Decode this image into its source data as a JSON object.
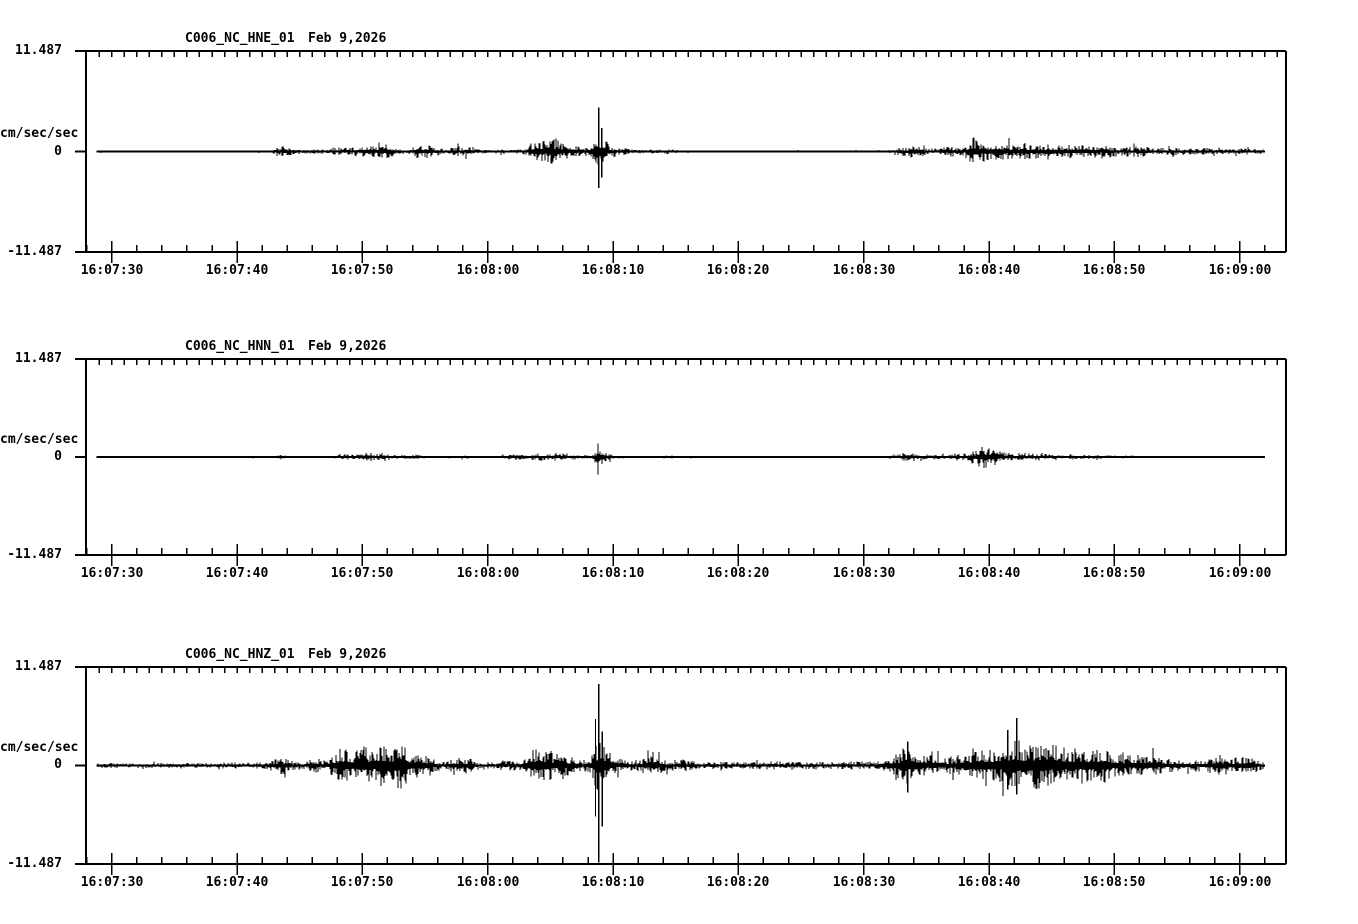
{
  "window": {
    "background": "#ffffff",
    "ink": "#000000"
  },
  "panels": [
    {
      "station": "C006_NC_HNE_01",
      "date": "Feb 9,2026",
      "units_label": "cm/sec/sec",
      "y_max_label": "11.487",
      "y_zero_label": "0",
      "y_min_label": "-11.487"
    },
    {
      "station": "C006_NC_HNN_01",
      "date": "Feb 9,2026",
      "units_label": "cm/sec/sec",
      "y_max_label": "11.487",
      "y_zero_label": "0",
      "y_min_label": "-11.487"
    },
    {
      "station": "C006_NC_HNZ_01",
      "date": "Feb 9,2026",
      "units_label": "cm/sec/sec",
      "y_max_label": "11.487",
      "y_zero_label": "0",
      "y_min_label": "-11.487"
    }
  ],
  "time_axis": {
    "labels": [
      "16:07:30",
      "16:07:40",
      "16:07:50",
      "16:08:00",
      "16:08:10",
      "16:08:20",
      "16:08:30",
      "16:08:40",
      "16:08:50",
      "16:09:00"
    ],
    "label_seconds": [
      30,
      40,
      50,
      60,
      70,
      80,
      90,
      100,
      110,
      120
    ],
    "minor_tick_step_seconds": 2,
    "top_tick_step_seconds": 1
  },
  "chart_data": {
    "type": "line",
    "subtype": "seismogram-3-component",
    "station": "C006 NC",
    "date": "Feb 9,2026",
    "ylabel": "cm/sec/sec",
    "ylim": [
      -11.487,
      11.487
    ],
    "ytick_labels": [
      "11.487",
      "0",
      "-11.487"
    ],
    "x_start_seconds": 28.8,
    "x_end_seconds": 122.0,
    "x_tick_labels": [
      "16:07:30",
      "16:07:40",
      "16:07:50",
      "16:08:00",
      "16:08:10",
      "16:08:20",
      "16:08:30",
      "16:08:40",
      "16:08:50",
      "16:09:00"
    ],
    "note": "t = seconds after 16:07:00; envelope = [t, peak amplitude cm/sec/sec]; spikes = [t, up_amp, down_amp]",
    "series": [
      {
        "name": "C006_NC_HNE_01",
        "channel": "HNE",
        "envelope": [
          [
            28.8,
            0.12
          ],
          [
            40,
            0.12
          ],
          [
            42.8,
            0.15
          ],
          [
            43.3,
            0.65
          ],
          [
            44.2,
            0.45
          ],
          [
            44.9,
            0.2
          ],
          [
            45.8,
            0.25
          ],
          [
            47.3,
            0.3
          ],
          [
            47.9,
            0.55
          ],
          [
            48.7,
            0.45
          ],
          [
            49.4,
            0.5
          ],
          [
            50.2,
            0.8
          ],
          [
            51,
            0.7
          ],
          [
            51.9,
            0.85
          ],
          [
            52.7,
            0.35
          ],
          [
            53.6,
            0.3
          ],
          [
            54.4,
            0.85
          ],
          [
            55.1,
            0.9
          ],
          [
            55.7,
            0.4
          ],
          [
            56.8,
            0.3
          ],
          [
            57.8,
            0.65
          ],
          [
            58.4,
            0.75
          ],
          [
            59.1,
            0.4
          ],
          [
            60.2,
            0.18
          ],
          [
            61.4,
            0.3
          ],
          [
            62.3,
            0.2
          ],
          [
            63.1,
            0.45
          ],
          [
            63.9,
            1.5
          ],
          [
            64.6,
            1.2
          ],
          [
            65.4,
            1.6
          ],
          [
            66.1,
            0.8
          ],
          [
            66.7,
            0.9
          ],
          [
            67.4,
            0.5
          ],
          [
            68.2,
            0.6
          ],
          [
            68.7,
            2.2
          ],
          [
            69.2,
            1.9
          ],
          [
            69.8,
            0.7
          ],
          [
            70.7,
            0.55
          ],
          [
            71.3,
            0.3
          ],
          [
            72.5,
            0.2
          ],
          [
            74.5,
            0.3
          ],
          [
            75.3,
            0.15
          ],
          [
            77,
            0.1
          ],
          [
            90,
            0.1
          ],
          [
            92.2,
            0.18
          ],
          [
            93,
            0.55
          ],
          [
            93.8,
            0.75
          ],
          [
            94.8,
            0.5
          ],
          [
            95.8,
            0.3
          ],
          [
            96.5,
            0.55
          ],
          [
            97.2,
            0.6
          ],
          [
            98,
            0.5
          ],
          [
            98.7,
            1.7
          ],
          [
            99.4,
            1.2
          ],
          [
            100.2,
            0.95
          ],
          [
            101,
            1.15
          ],
          [
            101.8,
            0.85
          ],
          [
            102.8,
            1.0
          ],
          [
            103.8,
            0.8
          ],
          [
            104.8,
            0.95
          ],
          [
            105.8,
            0.75
          ],
          [
            107,
            0.85
          ],
          [
            108.2,
            0.65
          ],
          [
            109.4,
            0.75
          ],
          [
            110.6,
            0.55
          ],
          [
            112,
            0.65
          ],
          [
            113.2,
            0.4
          ],
          [
            114.6,
            0.5
          ],
          [
            116,
            0.35
          ],
          [
            117.4,
            0.45
          ],
          [
            118.8,
            0.3
          ],
          [
            120.2,
            0.38
          ],
          [
            121.2,
            0.28
          ],
          [
            122,
            0.25
          ]
        ],
        "spikes": [
          [
            68.85,
            5.1,
            4.2
          ],
          [
            69.1,
            2.7,
            3.0
          ]
        ]
      },
      {
        "name": "C006_NC_HNN_01",
        "channel": "HNN",
        "envelope": [
          [
            28.8,
            0.08
          ],
          [
            42.8,
            0.1
          ],
          [
            43.4,
            0.3
          ],
          [
            44.2,
            0.12
          ],
          [
            47.6,
            0.14
          ],
          [
            48.3,
            0.4
          ],
          [
            49.3,
            0.35
          ],
          [
            50.5,
            0.5
          ],
          [
            51.6,
            0.55
          ],
          [
            52.4,
            0.25
          ],
          [
            54.3,
            0.28
          ],
          [
            55.1,
            0.15
          ],
          [
            56.5,
            0.08
          ],
          [
            57.9,
            0.2
          ],
          [
            58.6,
            0.25
          ],
          [
            59.3,
            0.12
          ],
          [
            60.8,
            0.1
          ],
          [
            61.5,
            0.4
          ],
          [
            62.4,
            0.45
          ],
          [
            63.2,
            0.2
          ],
          [
            64.1,
            0.45
          ],
          [
            64.9,
            0.35
          ],
          [
            65.6,
            0.5
          ],
          [
            66.5,
            0.45
          ],
          [
            67.2,
            0.2
          ],
          [
            68.4,
            0.3
          ],
          [
            68.8,
            1.1
          ],
          [
            69.3,
            0.8
          ],
          [
            69.9,
            0.25
          ],
          [
            71,
            0.15
          ],
          [
            72.8,
            0.1
          ],
          [
            74.6,
            0.22
          ],
          [
            75.4,
            0.12
          ],
          [
            78,
            0.12
          ],
          [
            80,
            0.07
          ],
          [
            91.5,
            0.07
          ],
          [
            92.4,
            0.2
          ],
          [
            93.2,
            0.5
          ],
          [
            94,
            0.55
          ],
          [
            94.9,
            0.3
          ],
          [
            95.8,
            0.35
          ],
          [
            96.6,
            0.3
          ],
          [
            97.4,
            0.45
          ],
          [
            98.2,
            0.4
          ],
          [
            98.9,
            1.0
          ],
          [
            99.5,
            1.35
          ],
          [
            100.3,
            1.1
          ],
          [
            101.1,
            0.6
          ],
          [
            102,
            0.5
          ],
          [
            103,
            0.45
          ],
          [
            104.2,
            0.4
          ],
          [
            105.4,
            0.35
          ],
          [
            106.6,
            0.3
          ],
          [
            108,
            0.25
          ],
          [
            109.5,
            0.2
          ],
          [
            111,
            0.18
          ],
          [
            113,
            0.12
          ],
          [
            115,
            0.1
          ],
          [
            118,
            0.13
          ],
          [
            120,
            0.08
          ],
          [
            122,
            0.08
          ]
        ],
        "spikes": [
          [
            68.8,
            1.6,
            2.1
          ]
        ]
      },
      {
        "name": "C006_NC_HNZ_01",
        "channel": "HNZ",
        "envelope": [
          [
            28.8,
            0.3
          ],
          [
            38,
            0.3
          ],
          [
            39.5,
            0.4
          ],
          [
            41,
            0.35
          ],
          [
            42.6,
            0.5
          ],
          [
            43.5,
            1.15
          ],
          [
            44.4,
            0.6
          ],
          [
            45.4,
            0.5
          ],
          [
            46.3,
            0.8
          ],
          [
            47.1,
            0.6
          ],
          [
            48.3,
            2.1
          ],
          [
            49.2,
            1.7
          ],
          [
            49.9,
            2.4
          ],
          [
            50.8,
            2.0
          ],
          [
            51.6,
            2.6
          ],
          [
            52.4,
            2.2
          ],
          [
            53.1,
            3.0
          ],
          [
            53.9,
            1.6
          ],
          [
            54.6,
            1.5
          ],
          [
            55.4,
            1.1
          ],
          [
            56.3,
            0.5
          ],
          [
            57.8,
            0.9
          ],
          [
            58.5,
            1.0
          ],
          [
            59.2,
            0.5
          ],
          [
            60.2,
            0.4
          ],
          [
            61.1,
            0.6
          ],
          [
            62,
            0.7
          ],
          [
            62.8,
            0.5
          ],
          [
            63.6,
            2.1
          ],
          [
            64.4,
            2.3
          ],
          [
            65.3,
            1.5
          ],
          [
            66,
            1.6
          ],
          [
            66.8,
            0.9
          ],
          [
            67.6,
            0.6
          ],
          [
            68.3,
            1.4
          ],
          [
            68.8,
            3.3
          ],
          [
            69.4,
            2.4
          ],
          [
            70,
            1.0
          ],
          [
            70.8,
            0.9
          ],
          [
            71.6,
            0.6
          ],
          [
            72.3,
            0.9
          ],
          [
            73,
            1.2
          ],
          [
            73.8,
            0.9
          ],
          [
            74.6,
            0.5
          ],
          [
            75.4,
            0.8
          ],
          [
            76.2,
            0.6
          ],
          [
            77.2,
            0.4
          ],
          [
            78.5,
            0.45
          ],
          [
            80,
            0.35
          ],
          [
            82.5,
            0.5
          ],
          [
            84,
            0.4
          ],
          [
            85.5,
            0.45
          ],
          [
            87,
            0.4
          ],
          [
            88.5,
            0.5
          ],
          [
            90,
            0.45
          ],
          [
            91.5,
            0.6
          ],
          [
            92.5,
            1.2
          ],
          [
            93.4,
            2.2
          ],
          [
            94.2,
            1.9
          ],
          [
            95,
            1.1
          ],
          [
            95.9,
            1.4
          ],
          [
            96.6,
            0.9
          ],
          [
            97.5,
            1.3
          ],
          [
            98.3,
            1.6
          ],
          [
            99.2,
            2.2
          ],
          [
            100,
            1.9
          ],
          [
            100.9,
            2.4
          ],
          [
            101.7,
            2.9
          ],
          [
            102.3,
            3.1
          ],
          [
            103,
            2.6
          ],
          [
            103.8,
            2.8
          ],
          [
            104.6,
            2.4
          ],
          [
            105.5,
            2.6
          ],
          [
            106.3,
            2.0
          ],
          [
            107.2,
            2.2
          ],
          [
            108,
            1.9
          ],
          [
            109.1,
            2.2
          ],
          [
            110,
            1.4
          ],
          [
            111.5,
            1.2
          ],
          [
            112.5,
            1.5
          ],
          [
            113.5,
            1.0
          ],
          [
            115,
            0.8
          ],
          [
            116.5,
            0.7
          ],
          [
            117.5,
            0.8
          ],
          [
            118.4,
            1.3
          ],
          [
            119.3,
            0.9
          ],
          [
            120.3,
            1.1
          ],
          [
            121.2,
            0.8
          ],
          [
            122,
            0.5
          ]
        ],
        "spikes": [
          [
            68.85,
            9.6,
            11.4
          ],
          [
            68.6,
            5.5,
            6.0
          ],
          [
            69.15,
            4.0,
            7.2
          ],
          [
            93.5,
            2.8,
            3.2
          ],
          [
            101.5,
            4.2,
            2.8
          ],
          [
            102.2,
            5.6,
            3.4
          ]
        ]
      }
    ]
  }
}
